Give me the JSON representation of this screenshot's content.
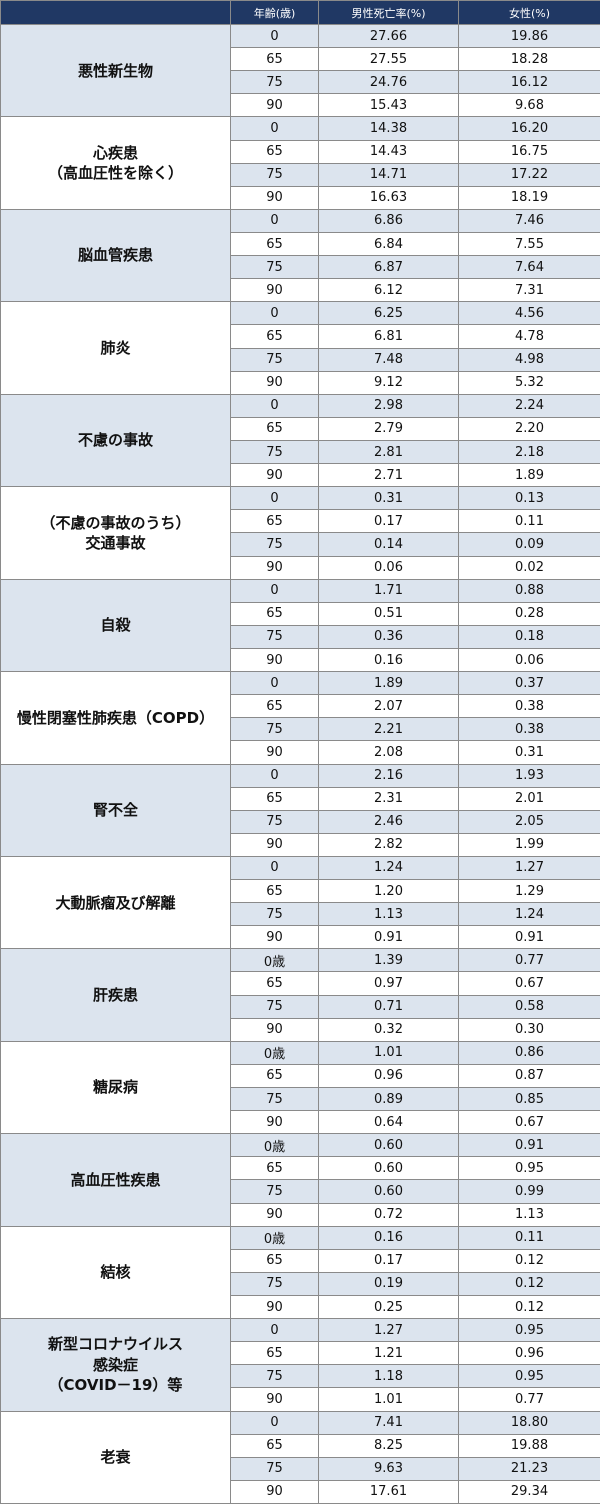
{
  "table": {
    "header": [
      "年齢(歳)",
      "男性死亡率(%)",
      "女性(%)"
    ],
    "groups": [
      {
        "label": "悪性新生物",
        "rows": [
          [
            "0",
            "27.66",
            "19.86"
          ],
          [
            "65",
            "27.55",
            "18.28"
          ],
          [
            "75",
            "24.76",
            "16.12"
          ],
          [
            "90",
            "15.43",
            "9.68"
          ]
        ]
      },
      {
        "label": "心疾患\n（高血圧性を除く）",
        "rows": [
          [
            "0",
            "14.38",
            "16.20"
          ],
          [
            "65",
            "14.43",
            "16.75"
          ],
          [
            "75",
            "14.71",
            "17.22"
          ],
          [
            "90",
            "16.63",
            "18.19"
          ]
        ]
      },
      {
        "label": "脳血管疾患",
        "rows": [
          [
            "0",
            "6.86",
            "7.46"
          ],
          [
            "65",
            "6.84",
            "7.55"
          ],
          [
            "75",
            "6.87",
            "7.64"
          ],
          [
            "90",
            "6.12",
            "7.31"
          ]
        ]
      },
      {
        "label": "肺炎",
        "rows": [
          [
            "0",
            "6.25",
            "4.56"
          ],
          [
            "65",
            "6.81",
            "4.78"
          ],
          [
            "75",
            "7.48",
            "4.98"
          ],
          [
            "90",
            "9.12",
            "5.32"
          ]
        ]
      },
      {
        "label": "不慮の事故",
        "rows": [
          [
            "0",
            "2.98",
            "2.24"
          ],
          [
            "65",
            "2.79",
            "2.20"
          ],
          [
            "75",
            "2.81",
            "2.18"
          ],
          [
            "90",
            "2.71",
            "1.89"
          ]
        ]
      },
      {
        "label": "（不慮の事故のうち）\n交通事故",
        "rows": [
          [
            "0",
            "0.31",
            "0.13"
          ],
          [
            "65",
            "0.17",
            "0.11"
          ],
          [
            "75",
            "0.14",
            "0.09"
          ],
          [
            "90",
            "0.06",
            "0.02"
          ]
        ]
      },
      {
        "label": "自殺",
        "rows": [
          [
            "0",
            "1.71",
            "0.88"
          ],
          [
            "65",
            "0.51",
            "0.28"
          ],
          [
            "75",
            "0.36",
            "0.18"
          ],
          [
            "90",
            "0.16",
            "0.06"
          ]
        ]
      },
      {
        "label": "慢性閉塞性肺疾患（COPD）",
        "rows": [
          [
            "0",
            "1.89",
            "0.37"
          ],
          [
            "65",
            "2.07",
            "0.38"
          ],
          [
            "75",
            "2.21",
            "0.38"
          ],
          [
            "90",
            "2.08",
            "0.31"
          ]
        ]
      },
      {
        "label": "腎不全",
        "rows": [
          [
            "0",
            "2.16",
            "1.93"
          ],
          [
            "65",
            "2.31",
            "2.01"
          ],
          [
            "75",
            "2.46",
            "2.05"
          ],
          [
            "90",
            "2.82",
            "1.99"
          ]
        ]
      },
      {
        "label": "大動脈瘤及び解離",
        "rows": [
          [
            "0",
            "1.24",
            "1.27"
          ],
          [
            "65",
            "1.20",
            "1.29"
          ],
          [
            "75",
            "1.13",
            "1.24"
          ],
          [
            "90",
            "0.91",
            "0.91"
          ]
        ]
      },
      {
        "label": "肝疾患",
        "rows": [
          [
            "0歳",
            "1.39",
            "0.77"
          ],
          [
            "65",
            "0.97",
            "0.67"
          ],
          [
            "75",
            "0.71",
            "0.58"
          ],
          [
            "90",
            "0.32",
            "0.30"
          ]
        ]
      },
      {
        "label": "糖尿病",
        "rows": [
          [
            "0歳",
            "1.01",
            "0.86"
          ],
          [
            "65",
            "0.96",
            "0.87"
          ],
          [
            "75",
            "0.89",
            "0.85"
          ],
          [
            "90",
            "0.64",
            "0.67"
          ]
        ]
      },
      {
        "label": "高血圧性疾患",
        "rows": [
          [
            "0歳",
            "0.60",
            "0.91"
          ],
          [
            "65",
            "0.60",
            "0.95"
          ],
          [
            "75",
            "0.60",
            "0.99"
          ],
          [
            "90",
            "0.72",
            "1.13"
          ]
        ]
      },
      {
        "label": "結核",
        "rows": [
          [
            "0歳",
            "0.16",
            "0.11"
          ],
          [
            "65",
            "0.17",
            "0.12"
          ],
          [
            "75",
            "0.19",
            "0.12"
          ],
          [
            "90",
            "0.25",
            "0.12"
          ]
        ]
      },
      {
        "label": "新型コロナウイルス\n感染症\n（COVID－19）等",
        "rows": [
          [
            "0",
            "1.27",
            "0.95"
          ],
          [
            "65",
            "1.21",
            "0.96"
          ],
          [
            "75",
            "1.18",
            "0.95"
          ],
          [
            "90",
            "1.01",
            "0.77"
          ]
        ]
      },
      {
        "label": "老衰",
        "rows": [
          [
            "0",
            "7.41",
            "18.80"
          ],
          [
            "65",
            "8.25",
            "19.88"
          ],
          [
            "75",
            "9.63",
            "21.23"
          ],
          [
            "90",
            "17.61",
            "29.34"
          ]
        ]
      }
    ]
  }
}
